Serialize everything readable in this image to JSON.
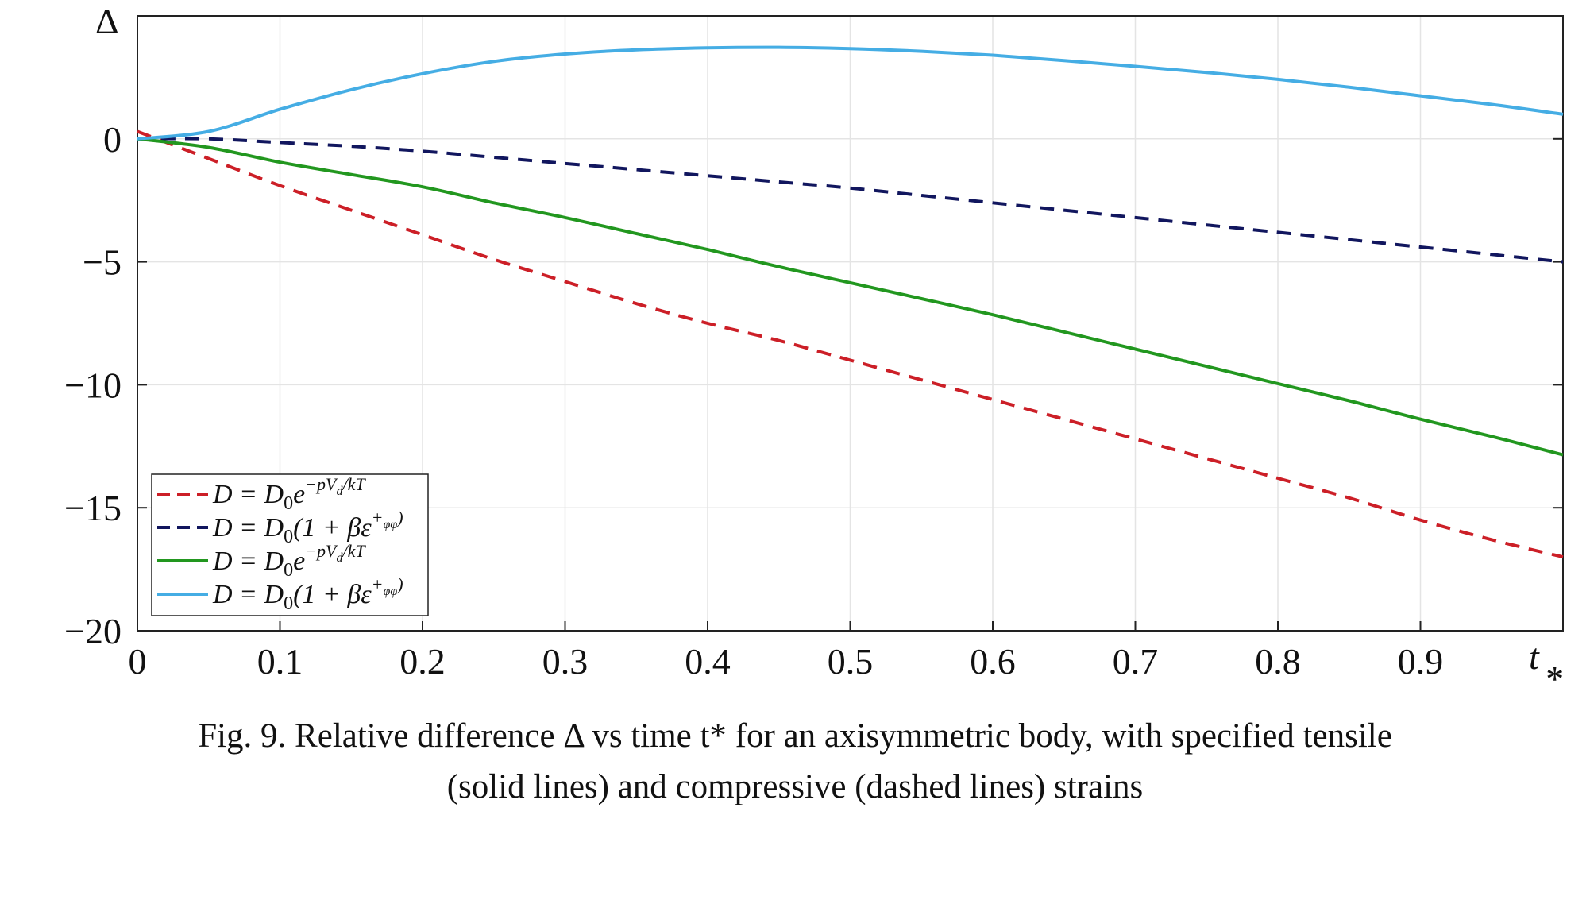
{
  "chart_data": {
    "type": "line",
    "title": "",
    "xlabel": "t_*",
    "ylabel": "Δ",
    "xlim": [
      0,
      1
    ],
    "ylim": [
      -20,
      5
    ],
    "grid": true,
    "legend_position": "bottom-left",
    "x_ticks": [
      "0",
      "0.1",
      "0.2",
      "0.3",
      "0.4",
      "0.5",
      "0.6",
      "0.7",
      "0.8",
      "0.9"
    ],
    "y_ticks": [
      "0",
      "−5",
      "−10",
      "−15",
      "−20"
    ],
    "y_ticks_values": [
      0,
      -5,
      -10,
      -15,
      -20
    ],
    "x_ticks_values": [
      0,
      0.1,
      0.2,
      0.3,
      0.4,
      0.5,
      0.6,
      0.7,
      0.8,
      0.9
    ],
    "x_axis_label_text": "t",
    "x_axis_label_sub": "*",
    "y_axis_label_text": "Δ",
    "series": [
      {
        "legend_label": "D = D0e^−pVd/kT",
        "color": "#cc1f27",
        "dash": "dashed",
        "x": [
          0,
          0.05,
          0.1,
          0.15,
          0.2,
          0.25,
          0.3,
          0.35,
          0.4,
          0.45,
          0.5,
          0.55,
          0.6,
          0.65,
          0.7,
          0.75,
          0.8,
          0.85,
          0.9,
          0.95,
          1.0
        ],
        "values": [
          0.3,
          -0.8,
          -1.9,
          -2.9,
          -3.9,
          -4.9,
          -5.8,
          -6.7,
          -7.5,
          -8.2,
          -9.0,
          -9.8,
          -10.6,
          -11.4,
          -12.2,
          -13.0,
          -13.8,
          -14.6,
          -15.5,
          -16.3,
          -17.0
        ]
      },
      {
        "legend_label": "D = D0(1 + βε⁺φφ)",
        "color": "#11165e",
        "dash": "dashed",
        "x": [
          0,
          0.05,
          0.1,
          0.15,
          0.2,
          0.25,
          0.3,
          0.35,
          0.4,
          0.45,
          0.5,
          0.55,
          0.6,
          0.65,
          0.7,
          0.75,
          0.8,
          0.85,
          0.9,
          0.95,
          1.0
        ],
        "values": [
          0.0,
          0.0,
          -0.15,
          -0.3,
          -0.5,
          -0.75,
          -1.0,
          -1.25,
          -1.5,
          -1.75,
          -2.0,
          -2.3,
          -2.6,
          -2.9,
          -3.2,
          -3.5,
          -3.8,
          -4.1,
          -4.4,
          -4.7,
          -5.0
        ]
      },
      {
        "legend_label": "D = D0e^−pVd/kT",
        "color": "#22971f",
        "dash": "solid",
        "x": [
          0,
          0.05,
          0.1,
          0.15,
          0.2,
          0.25,
          0.3,
          0.35,
          0.4,
          0.45,
          0.5,
          0.55,
          0.6,
          0.65,
          0.7,
          0.75,
          0.8,
          0.85,
          0.9,
          0.95,
          1.0
        ],
        "values": [
          0.0,
          -0.35,
          -0.95,
          -1.45,
          -1.95,
          -2.6,
          -3.2,
          -3.85,
          -4.5,
          -5.2,
          -5.85,
          -6.5,
          -7.15,
          -7.85,
          -8.55,
          -9.25,
          -9.95,
          -10.65,
          -11.4,
          -12.1,
          -12.85
        ]
      },
      {
        "legend_label": "D = D0(1 + βε⁺φφ)",
        "color": "#45ade4",
        "dash": "solid",
        "x": [
          0,
          0.05,
          0.1,
          0.15,
          0.2,
          0.25,
          0.3,
          0.35,
          0.4,
          0.45,
          0.5,
          0.55,
          0.6,
          0.65,
          0.7,
          0.75,
          0.8,
          0.85,
          0.9,
          0.95,
          1.0
        ],
        "values": [
          0.0,
          0.3,
          1.2,
          2.0,
          2.65,
          3.15,
          3.45,
          3.62,
          3.7,
          3.72,
          3.67,
          3.56,
          3.4,
          3.18,
          2.95,
          2.7,
          2.42,
          2.1,
          1.75,
          1.4,
          1.0
        ]
      }
    ],
    "legend": [
      {
        "main": "D = D",
        "sub": "0",
        "rest": "e",
        "sup": "−pV",
        "supsub": "d",
        "suptail": "/kT"
      },
      {
        "main": "D = D",
        "sub": "0",
        "rest": "(1 + βε",
        "sup": "+",
        "supsub": "φφ",
        "suptail": ")"
      },
      {
        "main": "D = D",
        "sub": "0",
        "rest": "e",
        "sup": "−pV",
        "supsub": "d",
        "suptail": "/kT"
      },
      {
        "main": "D = D",
        "sub": "0",
        "rest": "(1 + βε",
        "sup": "+",
        "supsub": "φφ",
        "suptail": ")"
      }
    ]
  },
  "caption": {
    "line1": "Fig. 9. Relative difference Δ vs time t* for an axisymmetric body, with specified tensile",
    "line2": "(solid lines) and compressive (dashed lines) strains"
  }
}
